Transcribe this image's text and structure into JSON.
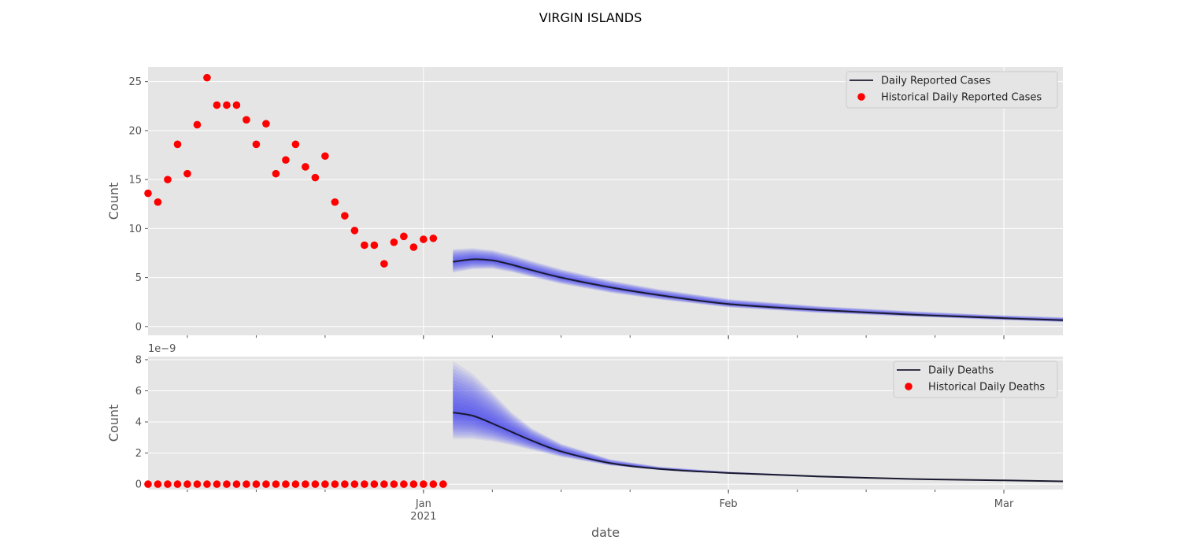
{
  "title": "VIRGIN ISLANDS",
  "xlabel": "date",
  "x_ticks": [
    {
      "date": "2021-01-01",
      "label": "Jan",
      "sublabel": "2021"
    },
    {
      "date": "2021-02-01",
      "label": "Feb",
      "sublabel": ""
    },
    {
      "date": "2021-03-01",
      "label": "Mar",
      "sublabel": ""
    }
  ],
  "colors": {
    "historical": "#ff0000",
    "forecast_line": "#1a1a2e",
    "ensemble": "#3c3cf0"
  },
  "chart_data": [
    {
      "type": "line",
      "panel": "cases",
      "ylabel": "Count",
      "xlim": [
        "2020-12-04",
        "2021-03-07"
      ],
      "ylim": [
        -0.9,
        26.5
      ],
      "y_ticks": [
        0,
        5,
        10,
        15,
        20,
        25
      ],
      "grid": true,
      "legend_position": "top-right",
      "legend": [
        "Daily Reported Cases",
        "Historical Daily Reported Cases"
      ],
      "historical": {
        "name": "Historical Daily Reported Cases",
        "x": [
          "2020-12-04",
          "2020-12-05",
          "2020-12-06",
          "2020-12-07",
          "2020-12-08",
          "2020-12-09",
          "2020-12-10",
          "2020-12-11",
          "2020-12-12",
          "2020-12-13",
          "2020-12-14",
          "2020-12-15",
          "2020-12-16",
          "2020-12-17",
          "2020-12-18",
          "2020-12-19",
          "2020-12-20",
          "2020-12-21",
          "2020-12-22",
          "2020-12-23",
          "2020-12-24",
          "2020-12-25",
          "2020-12-26",
          "2020-12-27",
          "2020-12-28",
          "2020-12-29",
          "2020-12-30",
          "2020-12-31",
          "2021-01-01",
          "2021-01-02",
          "2021-01-03"
        ],
        "values": [
          13.6,
          12.7,
          15.0,
          18.6,
          15.6,
          20.6,
          25.4,
          22.6,
          22.6,
          22.6,
          21.1,
          18.6,
          20.7,
          15.6,
          17.0,
          18.6,
          16.3,
          15.2,
          17.4,
          12.7,
          11.3,
          9.8,
          8.3,
          8.3,
          6.4,
          8.6,
          9.2,
          8.1,
          8.9,
          9.0,
          null
        ]
      },
      "forecast": {
        "name": "Daily Reported Cases",
        "x": [
          "2021-01-04",
          "2021-01-06",
          "2021-01-08",
          "2021-01-10",
          "2021-01-12",
          "2021-01-15",
          "2021-01-20",
          "2021-01-25",
          "2021-02-01",
          "2021-02-10",
          "2021-02-20",
          "2021-03-01",
          "2021-03-07"
        ],
        "values": [
          6.6,
          6.85,
          6.75,
          6.3,
          5.75,
          5.0,
          4.0,
          3.2,
          2.3,
          1.7,
          1.2,
          0.85,
          0.65
        ],
        "band_low": [
          5.5,
          5.85,
          5.9,
          5.55,
          5.05,
          4.35,
          3.45,
          2.75,
          1.95,
          1.4,
          1.0,
          0.65,
          0.45
        ],
        "band_high": [
          7.9,
          8.0,
          7.8,
          7.3,
          6.7,
          5.85,
          4.7,
          3.8,
          2.8,
          2.1,
          1.55,
          1.15,
          0.95
        ]
      }
    },
    {
      "type": "line",
      "panel": "deaths",
      "ylabel": "Count",
      "y_scale_label": "1e−9",
      "xlim": [
        "2020-12-04",
        "2021-03-07"
      ],
      "ylim": [
        -0.35,
        8.2
      ],
      "y_ticks": [
        0,
        2,
        4,
        6,
        8
      ],
      "grid": true,
      "legend_position": "top-right",
      "legend": [
        "Daily Deaths",
        "Historical Daily Deaths"
      ],
      "historical": {
        "name": "Historical Daily Deaths",
        "x": [
          "2020-12-04",
          "2020-12-05",
          "2020-12-06",
          "2020-12-07",
          "2020-12-08",
          "2020-12-09",
          "2020-12-10",
          "2020-12-11",
          "2020-12-12",
          "2020-12-13",
          "2020-12-14",
          "2020-12-15",
          "2020-12-16",
          "2020-12-17",
          "2020-12-18",
          "2020-12-19",
          "2020-12-20",
          "2020-12-21",
          "2020-12-22",
          "2020-12-23",
          "2020-12-24",
          "2020-12-25",
          "2020-12-26",
          "2020-12-27",
          "2020-12-28",
          "2020-12-29",
          "2020-12-30",
          "2020-12-31",
          "2021-01-01",
          "2021-01-02",
          "2021-01-03"
        ],
        "values": [
          0,
          0,
          0,
          0,
          0,
          0,
          0,
          0,
          0,
          0,
          0,
          0,
          0,
          0,
          0,
          0,
          0,
          0,
          0,
          0,
          0,
          0,
          0,
          0,
          0,
          0,
          0,
          0,
          0,
          0,
          0
        ]
      },
      "forecast": {
        "name": "Daily Deaths",
        "x": [
          "2021-01-04",
          "2021-01-06",
          "2021-01-08",
          "2021-01-10",
          "2021-01-12",
          "2021-01-15",
          "2021-01-20",
          "2021-01-25",
          "2021-02-01",
          "2021-02-10",
          "2021-02-20",
          "2021-03-01",
          "2021-03-07"
        ],
        "values": [
          4.6,
          4.4,
          3.9,
          3.35,
          2.8,
          2.1,
          1.35,
          0.98,
          0.72,
          0.5,
          0.33,
          0.24,
          0.18
        ],
        "band_low": [
          2.9,
          2.9,
          2.75,
          2.5,
          2.2,
          1.75,
          1.2,
          0.9,
          0.66,
          0.45,
          0.3,
          0.21,
          0.15
        ],
        "band_high": [
          7.9,
          7.1,
          5.9,
          4.6,
          3.6,
          2.6,
          1.6,
          1.12,
          0.8,
          0.56,
          0.37,
          0.27,
          0.21
        ]
      }
    }
  ]
}
